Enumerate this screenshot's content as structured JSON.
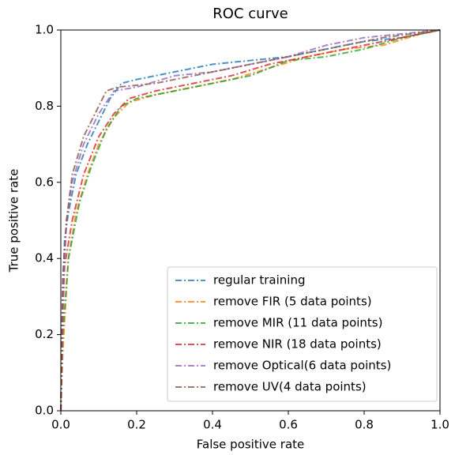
{
  "chart_data": {
    "type": "line",
    "title": "ROC curve",
    "x_label": "False positive rate",
    "y_label": "True positive rate",
    "xlim": [
      0,
      1
    ],
    "ylim": [
      0,
      1
    ],
    "xticks": [
      {
        "value": 0,
        "label": "0.0"
      },
      0.2,
      0.4,
      0.6,
      0.8,
      {
        "value": 1,
        "label": "1.0"
      }
    ],
    "yticks": [
      {
        "value": 0,
        "label": "0.0"
      },
      0.2,
      0.4,
      0.6,
      0.8,
      {
        "value": 1,
        "label": "1.0"
      }
    ],
    "grid": false,
    "legend": "lower right",
    "series": [
      {
        "name": "regular training",
        "color": "#1f77b4",
        "x": [
          0,
          0.005,
          0.01,
          0.02,
          0.04,
          0.07,
          0.1,
          0.13,
          0.16,
          0.2,
          0.3,
          0.4,
          0.5,
          0.6,
          0.7,
          0.8,
          0.9,
          1
        ],
        "values": [
          0,
          0.3,
          0.45,
          0.52,
          0.62,
          0.7,
          0.76,
          0.82,
          0.86,
          0.87,
          0.89,
          0.91,
          0.92,
          0.93,
          0.95,
          0.97,
          0.98,
          1
        ]
      },
      {
        "name": "remove FIR (5 data points)",
        "color": "#ff7f0e",
        "x": [
          0,
          0.005,
          0.02,
          0.04,
          0.07,
          0.1,
          0.14,
          0.18,
          0.25,
          0.35,
          0.45,
          0.55,
          0.65,
          0.75,
          0.85,
          0.95,
          1
        ],
        "values": [
          0,
          0.15,
          0.4,
          0.52,
          0.62,
          0.7,
          0.77,
          0.81,
          0.83,
          0.85,
          0.87,
          0.9,
          0.93,
          0.95,
          0.96,
          0.99,
          1
        ]
      },
      {
        "name": "remove MIR (11 data points)",
        "color": "#2ca02c",
        "x": [
          0,
          0.005,
          0.02,
          0.05,
          0.08,
          0.12,
          0.16,
          0.2,
          0.3,
          0.4,
          0.5,
          0.6,
          0.7,
          0.8,
          0.9,
          1
        ],
        "values": [
          0,
          0.2,
          0.4,
          0.55,
          0.64,
          0.74,
          0.8,
          0.82,
          0.84,
          0.86,
          0.88,
          0.92,
          0.93,
          0.95,
          0.98,
          1
        ]
      },
      {
        "name": "remove NIR (18 data points)",
        "color": "#d62728",
        "x": [
          0,
          0.005,
          0.01,
          0.03,
          0.06,
          0.1,
          0.14,
          0.18,
          0.25,
          0.35,
          0.45,
          0.55,
          0.65,
          0.75,
          0.85,
          0.95,
          1
        ],
        "values": [
          0,
          0.25,
          0.38,
          0.5,
          0.62,
          0.72,
          0.78,
          0.82,
          0.84,
          0.86,
          0.88,
          0.91,
          0.93,
          0.95,
          0.97,
          0.99,
          1
        ]
      },
      {
        "name": "remove Optical(6 data points)",
        "color": "#9467bd",
        "x": [
          0,
          0.005,
          0.015,
          0.03,
          0.06,
          0.1,
          0.14,
          0.2,
          0.3,
          0.4,
          0.5,
          0.6,
          0.7,
          0.8,
          0.9,
          1
        ],
        "values": [
          0,
          0.3,
          0.5,
          0.6,
          0.7,
          0.78,
          0.84,
          0.85,
          0.88,
          0.89,
          0.91,
          0.93,
          0.96,
          0.98,
          0.99,
          1
        ]
      },
      {
        "name": "remove UV(4 data points)",
        "color": "#8c564b",
        "x": [
          0,
          0.005,
          0.015,
          0.03,
          0.06,
          0.1,
          0.12,
          0.15,
          0.25,
          0.35,
          0.45,
          0.55,
          0.65,
          0.75,
          0.85,
          1
        ],
        "values": [
          0,
          0.35,
          0.5,
          0.62,
          0.72,
          0.8,
          0.84,
          0.85,
          0.86,
          0.88,
          0.9,
          0.92,
          0.94,
          0.96,
          0.98,
          1
        ]
      }
    ]
  }
}
